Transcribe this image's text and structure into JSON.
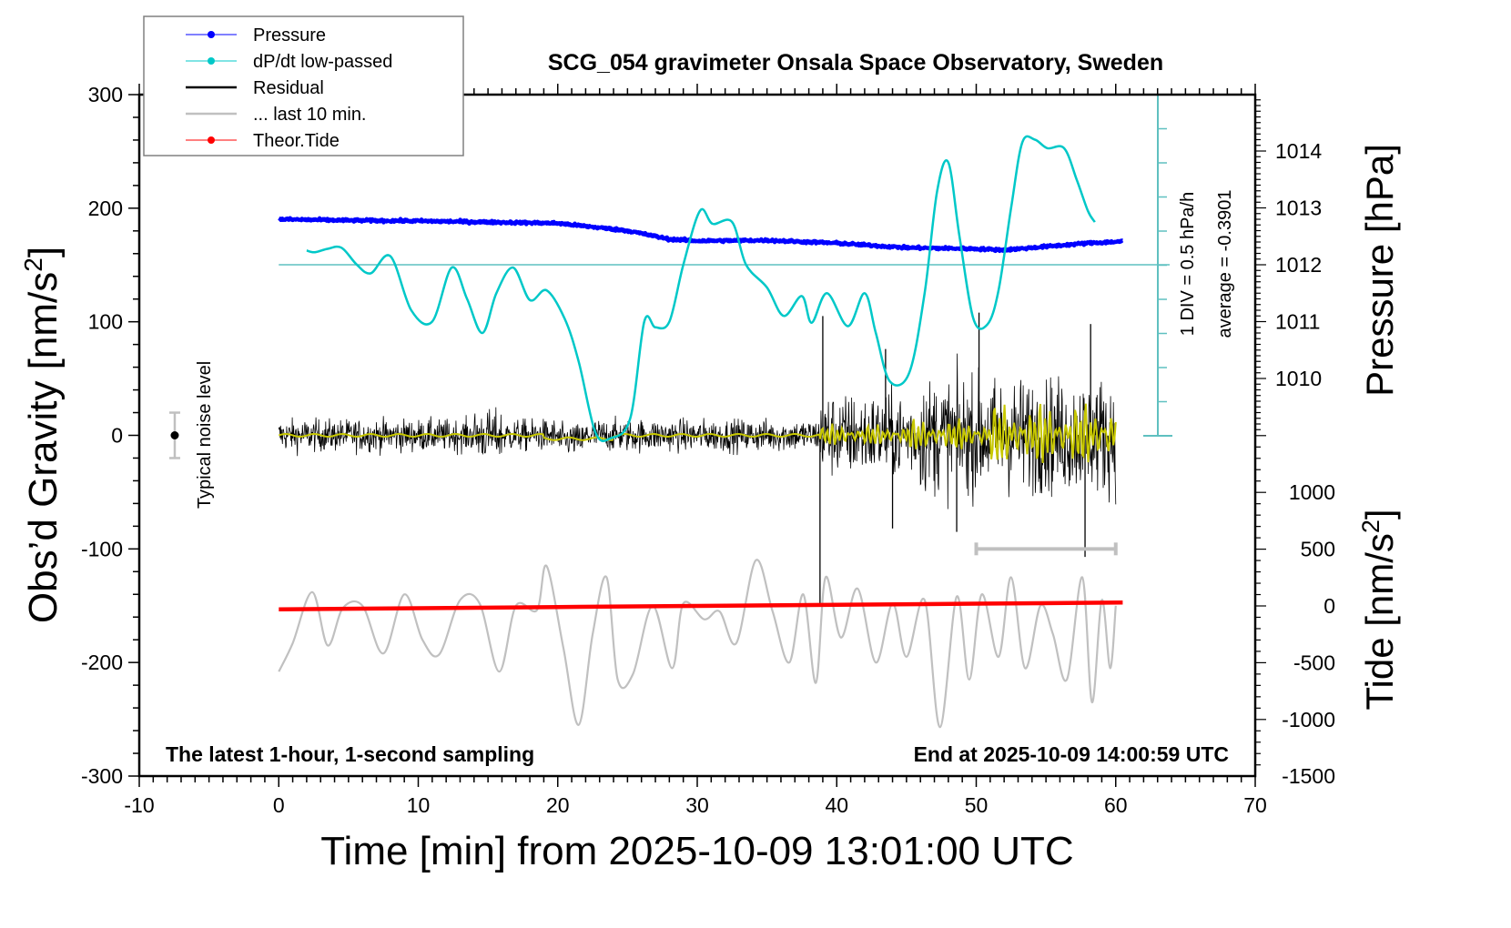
{
  "chart_data": {
    "type": "line",
    "title": "SCG_054 gravimeter Onsala Space Observatory, Sweden",
    "xlabel": "Time [min] from 2025-10-09 13:01:00 UTC",
    "ylabel_left": "Obs’d Gravity [nm/s",
    "ylabel_left_sup": "2",
    "ylabel_left_tail": "]",
    "ylabel_right_pressure": "Pressure [hPa]",
    "ylabel_right_tide": "Tide [nm/s",
    "ylabel_right_tide_sup": "2",
    "ylabel_right_tide_tail": "]",
    "xlim": [
      -10,
      70
    ],
    "ylim_left": [
      -300,
      300
    ],
    "ylim_pressure": [
      1008,
      1015
    ],
    "ylim_tide": [
      -1500,
      1500
    ],
    "x_ticks": [
      -10,
      0,
      10,
      20,
      30,
      40,
      50,
      60,
      70
    ],
    "y_ticks_left": [
      300,
      200,
      100,
      0,
      -100,
      -200,
      -300
    ],
    "y_ticks_pressure": [
      1014,
      1013,
      1012,
      1011,
      1010
    ],
    "y_ticks_tide": [
      1000,
      500,
      0,
      -500,
      -1000,
      -1500
    ],
    "grid": false,
    "legend_position": "top-left",
    "legend": [
      {
        "label": "Pressure",
        "color": "#0000ff",
        "marker": "dot"
      },
      {
        "label": "dP/dt low-passed",
        "color": "#00c8c8",
        "marker": "dot"
      },
      {
        "label": "Residual",
        "color": "#000000",
        "marker": "none"
      },
      {
        "label": "... last 10 min.",
        "color": "#c0c0c0",
        "marker": "none"
      },
      {
        "label": "Theor.Tide",
        "color": "#ff0000",
        "marker": "dot"
      }
    ],
    "annotations": {
      "bottom_left": "The latest 1-hour, 1-second sampling",
      "bottom_right": "End at 2025-10-09 14:00:59 UTC",
      "noise_label": "Typical noise level",
      "scale_label_1": "1 DIV = 0.5 hPa/h",
      "scale_label_2": "average = -0.3901"
    },
    "noise_level": {
      "x": -7,
      "center": 0,
      "half_range": 20
    },
    "last10_bar": {
      "x_start": 50,
      "x_end": 60,
      "y": -100
    },
    "dpdt_zero_line_pressure": 1012,
    "series": [
      {
        "name": "Pressure",
        "axis": "pressure",
        "color": "#0000ff",
        "x": [
          0,
          5,
          10,
          15,
          20,
          25,
          28,
          30,
          35,
          40,
          45,
          50,
          52,
          55,
          58,
          60.5
        ],
        "values": [
          1012.8,
          1012.78,
          1012.77,
          1012.75,
          1012.73,
          1012.6,
          1012.45,
          1012.42,
          1012.43,
          1012.38,
          1012.3,
          1012.28,
          1012.26,
          1012.32,
          1012.38,
          1012.41
        ]
      },
      {
        "name": "dP/dt low-passed",
        "axis": "pressure",
        "color": "#00c8c8",
        "x": [
          2,
          2.6,
          3.5,
          4.5,
          5.6,
          6.6,
          8,
          9.5,
          11,
          12.4,
          13.5,
          14.6,
          15.6,
          16.8,
          18,
          19.2,
          20.5,
          21.5,
          22.7,
          23.8,
          25.2,
          26.2,
          27,
          28,
          29,
          30.2,
          31.1,
          32.5,
          33.5,
          35,
          36.2,
          37.5,
          38.2,
          39.3,
          40.8,
          42,
          42.8,
          43.8,
          45.2,
          46.3,
          47.2,
          48.0,
          48.8,
          49.8,
          50.8,
          51.6,
          52.5,
          53.3,
          54.2,
          55.1,
          56.3,
          57.2,
          58.0,
          58.5
        ],
        "values": [
          1012.25,
          1012.22,
          1012.28,
          1012.3,
          1012.0,
          1011.85,
          1012.15,
          1011.2,
          1011.0,
          1011.95,
          1011.4,
          1010.8,
          1011.5,
          1011.95,
          1011.38,
          1011.55,
          1011.05,
          1010.3,
          1009.05,
          1008.95,
          1009.3,
          1011.0,
          1010.9,
          1011.0,
          1012.0,
          1012.95,
          1012.72,
          1012.75,
          1012.0,
          1011.6,
          1011.1,
          1011.45,
          1010.98,
          1011.5,
          1010.92,
          1011.5,
          1010.8,
          1009.95,
          1010.1,
          1011.5,
          1013.3,
          1013.8,
          1012.5,
          1011.05,
          1010.95,
          1011.55,
          1013.0,
          1014.15,
          1014.2,
          1014.05,
          1014.05,
          1013.5,
          1012.95,
          1012.75
        ]
      },
      {
        "name": "Residual (low-passed, yellow)",
        "axis": "left",
        "color": "#c8c800",
        "description": "smoothed residual near 0, amplitude ~2 nm/s2 before 39 min, ~10-30 nm/s2 after"
      },
      {
        "name": "Residual",
        "axis": "left",
        "color": "#000000",
        "description": "1-second residual noise, +/-20 nm/s2 before 39 min, spikes to +/-100 nm/s2 after; large spike at ~38.8 min reaching about -150",
        "spikes": [
          {
            "x": 38.8,
            "value": -150
          },
          {
            "x": 39.0,
            "value": 105
          },
          {
            "x": 43.5,
            "value": 76
          },
          {
            "x": 44.0,
            "value": -82
          },
          {
            "x": 48.6,
            "value": -85
          },
          {
            "x": 50.2,
            "value": 108
          },
          {
            "x": 57.8,
            "value": -107
          },
          {
            "x": 58.2,
            "value": 98
          }
        ]
      },
      {
        "name": "... last 10 min.",
        "axis": "left",
        "color": "#c0c0c0",
        "description": "residual of the last 10 minutes re-plotted, offset around -190 nm/s2, peaks from about -110 to -295",
        "x": [
          0,
          1,
          2.4,
          3.5,
          4.6,
          6,
          7.5,
          9,
          10.3,
          11.5,
          13,
          14.4,
          15.8,
          17,
          18.5,
          19.2,
          20.4,
          21.5,
          22.5,
          23.5,
          24.3,
          25.4,
          26.8,
          28.2,
          29.0,
          30.5,
          31.6,
          32.8,
          34.2,
          35.4,
          36.6,
          37.6,
          38.5,
          39.2,
          40.3,
          41.5,
          42.8,
          44.0,
          45.0,
          46.3,
          47.4,
          48.6,
          49.5,
          50.4,
          51.6,
          52.5,
          53.5,
          54.6,
          55.5,
          56.5,
          57.6,
          58.3,
          59.0,
          59.6,
          60
        ],
        "values": [
          -208,
          -183,
          -138,
          -185,
          -152,
          -150,
          -192,
          -140,
          -180,
          -193,
          -145,
          -148,
          -208,
          -150,
          -154,
          -115,
          -187,
          -255,
          -175,
          -125,
          -215,
          -210,
          -150,
          -205,
          -148,
          -162,
          -155,
          -183,
          -110,
          -155,
          -200,
          -140,
          -218,
          -125,
          -178,
          -135,
          -200,
          -148,
          -195,
          -145,
          -257,
          -142,
          -215,
          -140,
          -195,
          -125,
          -205,
          -150,
          -175,
          -215,
          -125,
          -235,
          -145,
          -205,
          -150
        ]
      },
      {
        "name": "Theor.Tide",
        "axis": "tide",
        "color": "#ff0000",
        "x": [
          0,
          10,
          20,
          30,
          40,
          50,
          60.5
        ],
        "values": [
          -30,
          -20,
          -10,
          0,
          10,
          20,
          30
        ]
      }
    ]
  }
}
